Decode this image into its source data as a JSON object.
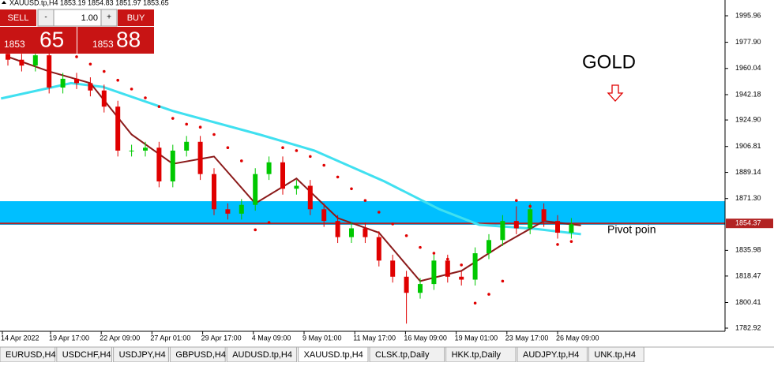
{
  "header": "XAUUSD.tp,H4  1853.19 1854.83 1851.97 1853.65",
  "trade_panel": {
    "sell": "SELL",
    "buy": "BUY",
    "lot": "1.00",
    "minus": "-",
    "plus": "+",
    "sell_small": "1853",
    "sell_big": "65",
    "buy_small": "1853",
    "buy_big": "88"
  },
  "chart_data": {
    "type": "candlestick",
    "annotation": "GOLD",
    "pivot_label": "Pivot poin",
    "ylim": [
      1780.77,
      2006.72
    ],
    "yticks": [
      1995.96,
      {
        "value": 1977.9,
        "label": "1977.90"
      },
      1960.04,
      1942.18,
      {
        "value": 1924.9,
        "label": "1924.90"
      },
      1906.81,
      1889.14,
      {
        "value": 1871.3,
        "label": "1871.30"
      },
      1835.98,
      1818.47,
      1800.41,
      1782.92
    ],
    "price_label": 1854.37,
    "zone": [
      1853.4,
      1869.5
    ],
    "zone_color": "#00bfff",
    "pivot_color": "#b22222",
    "x_labels": [
      "14 Apr 2022",
      "19 Apr 17:00",
      "22 Apr 09:00",
      "27 Apr 01:00",
      "29 Apr 17:00",
      "4 May 09:00",
      "9 May 01:00",
      "11 May 17:00",
      "16 May 09:00",
      "19 May 01:00",
      "23 May 17:00",
      "26 May 09:00"
    ],
    "up_color": "#00c800",
    "down_color": "#e00000",
    "open": [
      1970,
      1966,
      1962,
      1969,
      1947,
      1953,
      1950,
      1945,
      1934,
      1904,
      1904,
      1906,
      1883,
      1904,
      1910,
      1888,
      1864,
      1861,
      1867,
      1888,
      1896,
      1878,
      1880,
      1864,
      1856,
      1845,
      1851,
      1845,
      1829,
      1818,
      1807,
      1813,
      1829,
      1818,
      1816,
      1834,
      1843,
      1856,
      1851,
      1864,
      1856,
      1848
    ],
    "high": [
      1974,
      1970,
      1973,
      1973,
      1957,
      1957,
      1954,
      1949,
      1938,
      1908,
      1910,
      1910,
      1908,
      1914,
      1914,
      1892,
      1868,
      1871,
      1892,
      1900,
      1900,
      1884,
      1884,
      1868,
      1860,
      1855,
      1855,
      1849,
      1833,
      1822,
      1817,
      1833,
      1833,
      1822,
      1838,
      1847,
      1860,
      1866,
      1868,
      1868,
      1860,
      1858
    ],
    "low": [
      1962,
      1958,
      1958,
      1943,
      1943,
      1946,
      1941,
      1930,
      1900,
      1900,
      1900,
      1879,
      1879,
      1900,
      1884,
      1860,
      1857,
      1857,
      1863,
      1884,
      1874,
      1874,
      1860,
      1852,
      1841,
      1841,
      1841,
      1825,
      1814,
      1786,
      1803,
      1809,
      1814,
      1812,
      1812,
      1830,
      1839,
      1847,
      1847,
      1852,
      1844,
      1844
    ],
    "close": [
      1966,
      1962,
      1969,
      1947,
      1953,
      1950,
      1945,
      1934,
      1904,
      1904,
      1906,
      1883,
      1904,
      1910,
      1888,
      1864,
      1861,
      1867,
      1888,
      1896,
      1878,
      1880,
      1864,
      1856,
      1845,
      1851,
      1845,
      1829,
      1818,
      1807,
      1813,
      1829,
      1818,
      1816,
      1834,
      1843,
      1856,
      1851,
      1864,
      1856,
      1848,
      1853.8
    ],
    "sar": [
      1978,
      1976,
      1974,
      1977,
      1972,
      1968,
      1963,
      1958,
      1952,
      1946,
      1940,
      1934,
      1926,
      1922,
      1920,
      1915,
      1906,
      1897,
      1850,
      1855,
      1906,
      1904,
      1900,
      1894,
      1886,
      1878,
      1870,
      1862,
      1854,
      1846,
      1838,
      1834,
      1830,
      1826,
      1800,
      1806,
      1815,
      1870,
      1866,
      1862,
      1840,
      1842
    ],
    "sar_color": "#e00000",
    "lines": [
      {
        "color": "#40e0f0",
        "x": [
          -0.5,
          4.6,
          6.9,
          12,
          18.3,
          22.3,
          27.4,
          31.4,
          34.3,
          38.3,
          41.7
        ],
        "values": [
          1939.5,
          1950,
          1947.5,
          1931,
          1915,
          1904,
          1883,
          1864,
          1853.4,
          1850.7,
          1847
        ]
      },
      {
        "color": "#8b1a1a",
        "x": [
          0,
          3,
          6,
          9,
          12,
          15,
          18,
          21,
          24,
          27,
          30,
          33,
          36,
          39,
          41.7
        ],
        "values": [
          1968,
          1958,
          1950,
          1915,
          1895,
          1900,
          1868,
          1885,
          1858,
          1848,
          1815,
          1822,
          1840,
          1856,
          1853
        ]
      }
    ]
  },
  "tabs": [
    "EURUSD,H4",
    "USDCHF,H4",
    "USDJPY,H4",
    "GBPUSD,H4",
    "AUDUSD.tp,H4",
    "XAUUSD.tp,H4",
    "CLSK.tp,Daily",
    "HKK.tp,Daily",
    "AUDJPY.tp,H4",
    "UNK.tp,H4"
  ],
  "active_tab": "XAUUSD.tp,H4"
}
